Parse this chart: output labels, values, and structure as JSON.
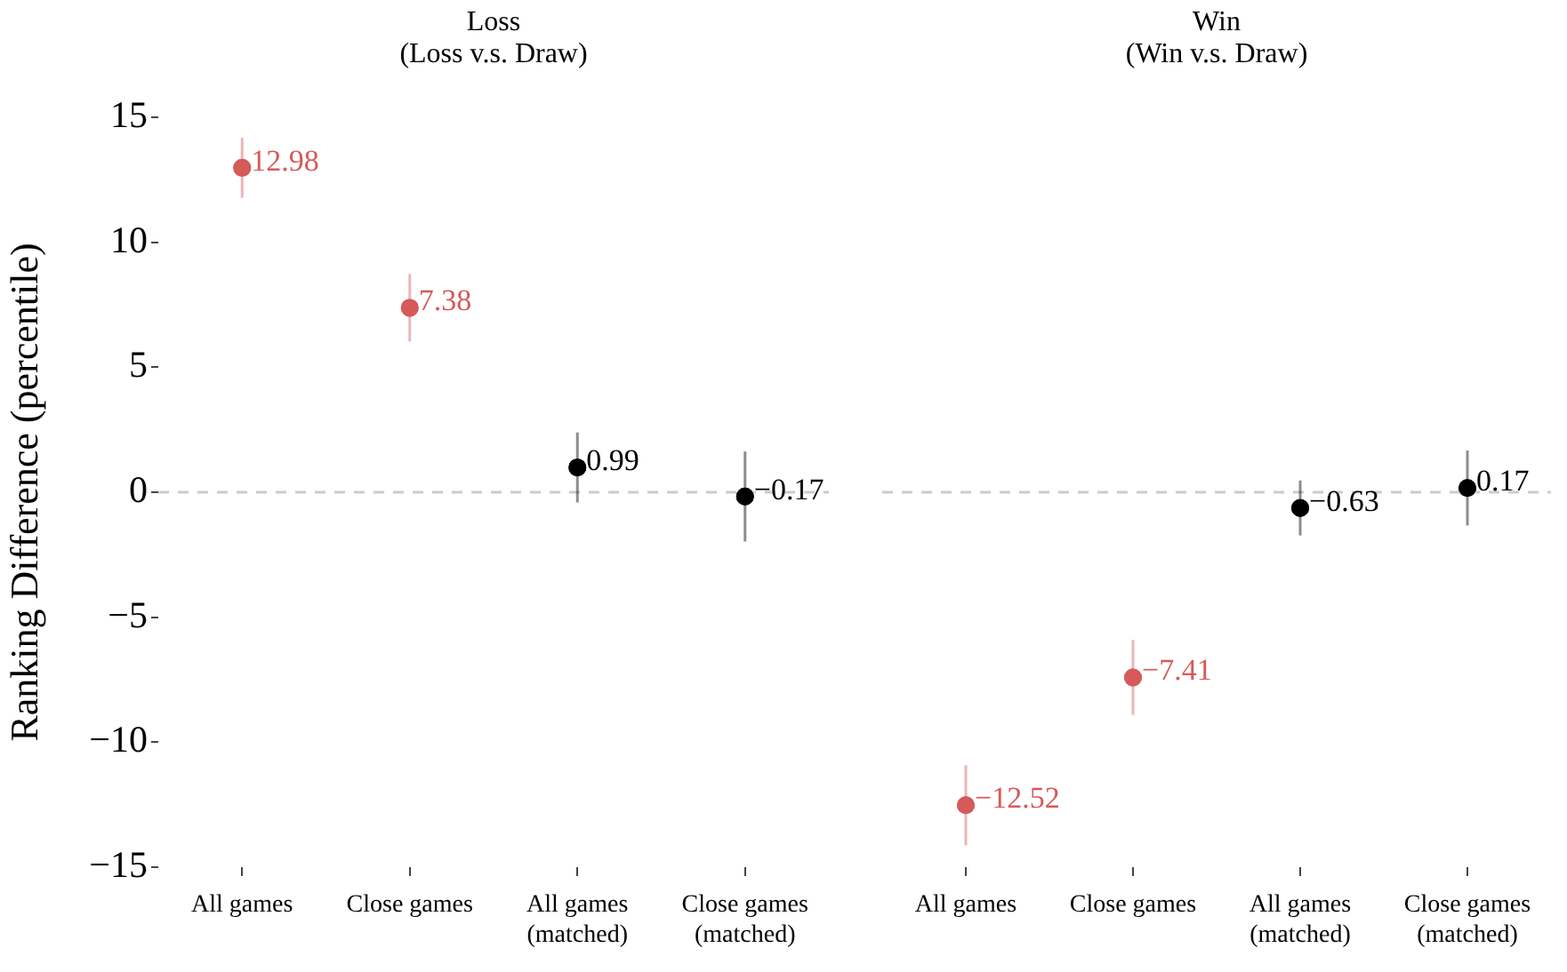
{
  "chart_data": [
    {
      "type": "scatter",
      "title": "Loss\n(Loss v.s. Draw)",
      "ylabel": "Ranking Difference (percentile)",
      "categories": [
        "All games",
        "Close games",
        "All games\n(matched)",
        "Close games\n(matched)"
      ],
      "values": [
        12.98,
        7.38,
        0.99,
        -0.17
      ],
      "colors": [
        "#d65a5a",
        "#d65a5a",
        "#000000",
        "#000000"
      ],
      "errors": [
        1.2,
        1.35,
        1.4,
        1.8
      ],
      "value_labels": [
        "12.98",
        "7.38",
        "0.99",
        "−0.17"
      ],
      "ylim": [
        -15,
        15
      ],
      "yticks": [
        {
          "value": -15,
          "label": "−15"
        },
        {
          "value": -10,
          "label": "−10"
        },
        {
          "value": -5,
          "label": "−5"
        },
        0,
        5,
        10,
        15
      ],
      "ref_lines": [
        {
          "axis": "y",
          "value": 0,
          "color": "#cccccc",
          "line_style": "dashed"
        }
      ],
      "grid": false,
      "legend": false,
      "marker": "circle"
    },
    {
      "type": "scatter",
      "title": "Win\n(Win v.s. Draw)",
      "categories": [
        "All games",
        "Close games",
        "All games\n(matched)",
        "Close games\n(matched)"
      ],
      "values": [
        -12.52,
        -7.41,
        -0.63,
        0.17
      ],
      "colors": [
        "#d65a5a",
        "#d65a5a",
        "#000000",
        "#000000"
      ],
      "errors": [
        1.6,
        1.5,
        1.1,
        1.5
      ],
      "value_labels": [
        "−12.52",
        "−7.41",
        "−0.63",
        "0.17"
      ],
      "ylim": [
        -15,
        15
      ],
      "ref_lines": [
        {
          "axis": "y",
          "value": 0,
          "color": "#cccccc",
          "line_style": "dashed"
        }
      ],
      "grid": false,
      "legend": false,
      "marker": "circle",
      "tick_labels": "x"
    }
  ]
}
